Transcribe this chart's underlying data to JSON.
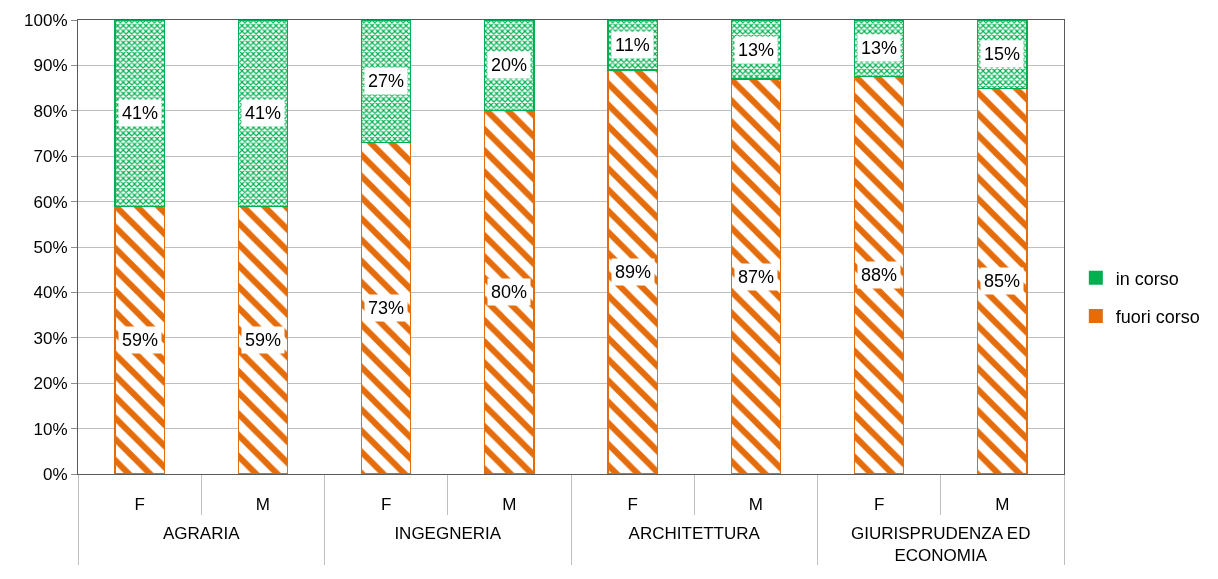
{
  "chart_data": {
    "type": "bar",
    "stacked": true,
    "categories": [
      "F",
      "M",
      "F",
      "M",
      "F",
      "M",
      "F",
      "M"
    ],
    "annotations": [
      "AGRARIA",
      "INGEGNERIA",
      "ARCHITETTURA",
      "GIURISPRUDENZA ED ECONOMIA"
    ],
    "series": [
      {
        "name": "fuori corso",
        "color": "#e46c0a",
        "values": [
          59,
          59,
          73,
          80,
          89,
          87,
          87.5,
          85
        ],
        "value_labels": [
          "59%",
          "59%",
          "73%",
          "80%",
          "89%",
          "87%",
          "88%",
          "85%"
        ]
      },
      {
        "name": "in corso",
        "color": "#00b050",
        "values": [
          41,
          41,
          27,
          20,
          11,
          13,
          12.5,
          15
        ],
        "value_labels": [
          "41%",
          "41%",
          "27%",
          "20%",
          "11%",
          "13%",
          "13%",
          "15%"
        ]
      }
    ],
    "ylim": [
      0,
      100
    ],
    "yticks": [
      {
        "value": 0,
        "label": "0%"
      },
      {
        "value": 10,
        "label": "10%"
      },
      {
        "value": 20,
        "label": "20%"
      },
      {
        "value": 30,
        "label": "30%"
      },
      {
        "value": 40,
        "label": "40%"
      },
      {
        "value": 50,
        "label": "50%"
      },
      {
        "value": 60,
        "label": "60%"
      },
      {
        "value": 70,
        "label": "70%"
      },
      {
        "value": 80,
        "label": "80%"
      },
      {
        "value": 90,
        "label": "90%"
      },
      {
        "value": 100,
        "label": "100%"
      }
    ],
    "grid": "y",
    "legend": "right"
  }
}
